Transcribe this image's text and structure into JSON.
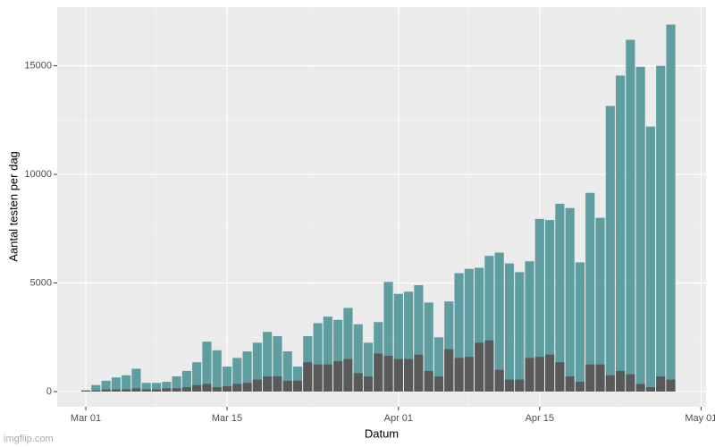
{
  "chart_data": {
    "type": "bar",
    "x_label": "Datum",
    "y_label": "Aantal testen per dag",
    "x": [
      "Mar 01",
      "Mar 02",
      "Mar 03",
      "Mar 04",
      "Mar 05",
      "Mar 06",
      "Mar 07",
      "Mar 08",
      "Mar 09",
      "Mar 10",
      "Mar 11",
      "Mar 12",
      "Mar 13",
      "Mar 14",
      "Mar 15",
      "Mar 16",
      "Mar 17",
      "Mar 18",
      "Mar 19",
      "Mar 20",
      "Mar 21",
      "Mar 22",
      "Mar 23",
      "Mar 24",
      "Mar 25",
      "Mar 26",
      "Mar 27",
      "Mar 28",
      "Mar 29",
      "Mar 30",
      "Mar 31",
      "Apr 01",
      "Apr 02",
      "Apr 03",
      "Apr 04",
      "Apr 05",
      "Apr 06",
      "Apr 07",
      "Apr 08",
      "Apr 09",
      "Apr 10",
      "Apr 11",
      "Apr 12",
      "Apr 13",
      "Apr 14",
      "Apr 15",
      "Apr 16",
      "Apr 17",
      "Apr 18",
      "Apr 19",
      "Apr 20",
      "Apr 21",
      "Apr 22",
      "Apr 23",
      "Apr 24",
      "Apr 25",
      "Apr 26",
      "Apr 27",
      "Apr 28"
    ],
    "series": [
      {
        "color": "#5f9ea0",
        "values": [
          50,
          300,
          500,
          650,
          750,
          1050,
          400,
          400,
          450,
          700,
          950,
          1350,
          2300,
          1900,
          1150,
          1550,
          1850,
          2250,
          2750,
          2550,
          1850,
          1150,
          2550,
          3150,
          3450,
          3300,
          3850,
          3100,
          2250,
          3200,
          5050,
          4500,
          4600,
          4900,
          4100,
          2500,
          4150,
          5450,
          5650,
          5700,
          6250,
          6400,
          5900,
          5500,
          6000,
          7950,
          7900,
          8650,
          8450,
          5950,
          9150,
          8000,
          13150,
          14550,
          16200,
          14950,
          12200,
          15000,
          16900
        ]
      },
      {
        "color": "#595959",
        "values": [
          50,
          50,
          100,
          100,
          100,
          150,
          100,
          100,
          150,
          150,
          200,
          300,
          350,
          200,
          250,
          350,
          400,
          550,
          700,
          700,
          500,
          500,
          1350,
          1250,
          1250,
          1400,
          1500,
          850,
          700,
          1750,
          1650,
          1500,
          1500,
          1700,
          950,
          700,
          1950,
          1550,
          1600,
          2250,
          2350,
          1000,
          550,
          550,
          1550,
          1600,
          1700,
          1350,
          700,
          450,
          1250,
          1250,
          750,
          950,
          800,
          350,
          200,
          700,
          550
        ]
      }
    ],
    "xticks": [
      "Mar 01",
      "Mar 15",
      "Apr 01",
      "Apr 15",
      "May 01"
    ],
    "ylim": [
      -700,
      17700
    ],
    "yticks": [
      0,
      5000,
      10000,
      15000
    ],
    "grid": true,
    "watermark": "imgflip.com"
  }
}
